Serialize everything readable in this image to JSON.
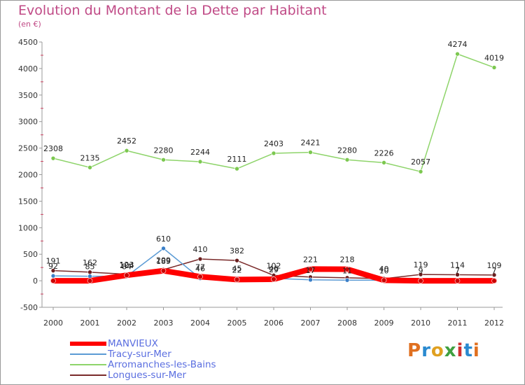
{
  "header": {
    "title": "Evolution du Montant de la Dette par Habitant",
    "subtitle": "(en €)"
  },
  "logo": {
    "text": "Proxiti",
    "colors": [
      "#e07020",
      "#2a8ad0",
      "#e0a020",
      "#40a040",
      "#d03030",
      "#2a8ad0",
      "#e07020"
    ]
  },
  "chart_data": {
    "type": "line",
    "title": "Evolution du Montant de la Dette par Habitant",
    "subtitle": "(en €)",
    "xlabel": "",
    "ylabel": "",
    "x": [
      "2000",
      "2001",
      "2002",
      "2003",
      "2004",
      "2005",
      "2006",
      "2007",
      "2008",
      "2009",
      "2010",
      "2011",
      "2012"
    ],
    "ylim": [
      -500,
      4500
    ],
    "yticks": [
      -500,
      0,
      500,
      1000,
      1500,
      2000,
      2500,
      3000,
      3500,
      4000,
      4500
    ],
    "grid": false,
    "legend": "bottom-left",
    "series": [
      {
        "name": "MANVIEUX",
        "color": "#ff0000",
        "values": [
          0,
          0,
          104,
          189,
          77,
          22,
          29,
          221,
          218,
          10,
          0,
          0,
          0
        ],
        "labels": [
          "",
          "",
          "104",
          "189",
          "77",
          "22",
          "29",
          "221",
          "218",
          "",
          "",
          "",
          ""
        ]
      },
      {
        "name": "Tracy-sur-Mer",
        "color": "#5b9bd5",
        "values": [
          92,
          85,
          84,
          610,
          46,
          45,
          46,
          17,
          11,
          10,
          9,
          7,
          7
        ],
        "labels": [
          "92",
          "85",
          "84",
          "610",
          "46",
          "45",
          "46",
          "17",
          "11",
          "10",
          "9",
          "7",
          "7"
        ]
      },
      {
        "name": "Arromanches-les-Bains",
        "color": "#8ed46a",
        "values": [
          2308,
          2135,
          2452,
          2280,
          2244,
          2111,
          2403,
          2421,
          2280,
          2226,
          2057,
          4274,
          4019
        ],
        "labels": [
          "2308",
          "2135",
          "2452",
          "2280",
          "2244",
          "2111",
          "2403",
          "2421",
          "2280",
          "2226",
          "2057",
          "4274",
          "4019"
        ]
      },
      {
        "name": "Longues-sur-Mer",
        "color": "#7a2a2a",
        "values": [
          191,
          162,
          123,
          209,
          410,
          382,
          102,
          70,
          56,
          40,
          119,
          114,
          109
        ],
        "labels": [
          "191",
          "162",
          "123",
          "209",
          "410",
          "382",
          "102",
          "",
          "",
          "40",
          "119",
          "114",
          "109"
        ]
      }
    ]
  }
}
